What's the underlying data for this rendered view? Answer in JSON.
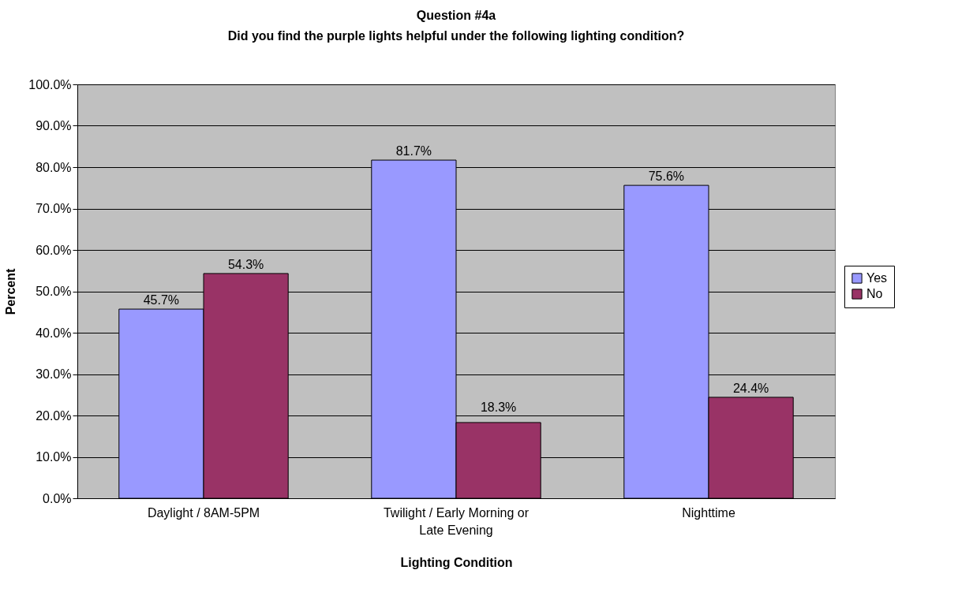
{
  "chart_data": {
    "type": "bar",
    "title": "Question #4a",
    "subtitle": "Did you find the purple lights helpful under the following lighting condition?",
    "xlabel": "Lighting Condition",
    "ylabel": "Percent",
    "categories": [
      "Daylight / 8AM-5PM",
      "Twilight / Early Morning or Late Evening",
      "Nighttime"
    ],
    "series": [
      {
        "name": "Yes",
        "color": "#9999ff",
        "values": [
          45.7,
          81.7,
          75.6
        ],
        "value_labels": [
          "45.7%",
          "81.7%",
          "75.6%"
        ]
      },
      {
        "name": "No",
        "color": "#993366",
        "values": [
          54.3,
          18.3,
          24.4
        ],
        "value_labels": [
          "54.3%",
          "18.3%",
          "24.4%"
        ]
      }
    ],
    "ylim": [
      0,
      100
    ],
    "yticks": [
      {
        "value": 0,
        "label": "0.0%"
      },
      {
        "value": 10,
        "label": "10.0%"
      },
      {
        "value": 20,
        "label": "20.0%"
      },
      {
        "value": 30,
        "label": "30.0%"
      },
      {
        "value": 40,
        "label": "40.0%"
      },
      {
        "value": 50,
        "label": "50.0%"
      },
      {
        "value": 60,
        "label": "60.0%"
      },
      {
        "value": 70,
        "label": "70.0%"
      },
      {
        "value": 80,
        "label": "80.0%"
      },
      {
        "value": 90,
        "label": "90.0%"
      },
      {
        "value": 100,
        "label": "100.0%"
      }
    ],
    "grid": "y",
    "legend": "right"
  }
}
